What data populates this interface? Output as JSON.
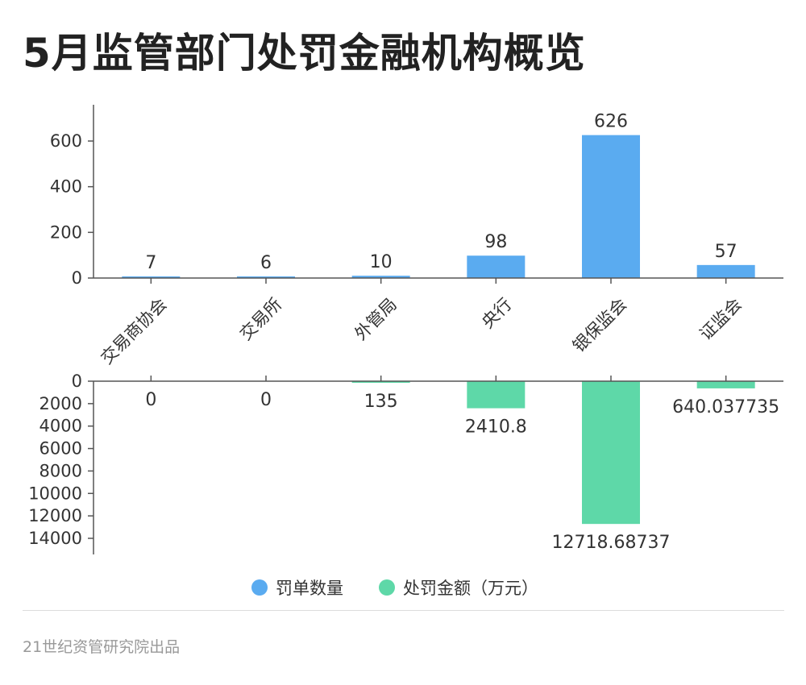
{
  "title": "5月监管部门处罚金融机构概览",
  "footer": "21世纪资管研究院出品",
  "chart_data": {
    "type": "bar",
    "categories": [
      "交易商协会",
      "交易所",
      "外管局",
      "央行",
      "银保监会",
      "证监会"
    ],
    "series": [
      {
        "name": "罚单数量",
        "color": "#5aabf0",
        "values": [
          7,
          6,
          10,
          98,
          626,
          57
        ],
        "labels": [
          "7",
          "6",
          "10",
          "98",
          "626",
          "57"
        ],
        "ylim": [
          0,
          750
        ],
        "yticks": [
          "0",
          "200",
          "400",
          "600"
        ],
        "direction": "up"
      },
      {
        "name": "处罚金额（万元）",
        "color": "#5ed8a8",
        "values": [
          0,
          0,
          135,
          2410.8,
          12718.68737,
          640.037735
        ],
        "labels": [
          "0",
          "0",
          "135",
          "2410.8",
          "12718.68737",
          "640.037735"
        ],
        "ylim": [
          0,
          15000
        ],
        "yticks": [
          "0",
          "2000",
          "4000",
          "6000",
          "8000",
          "10000",
          "12000",
          "14000"
        ],
        "direction": "down"
      }
    ],
    "legend_position": "bottom-center",
    "grid": false
  }
}
